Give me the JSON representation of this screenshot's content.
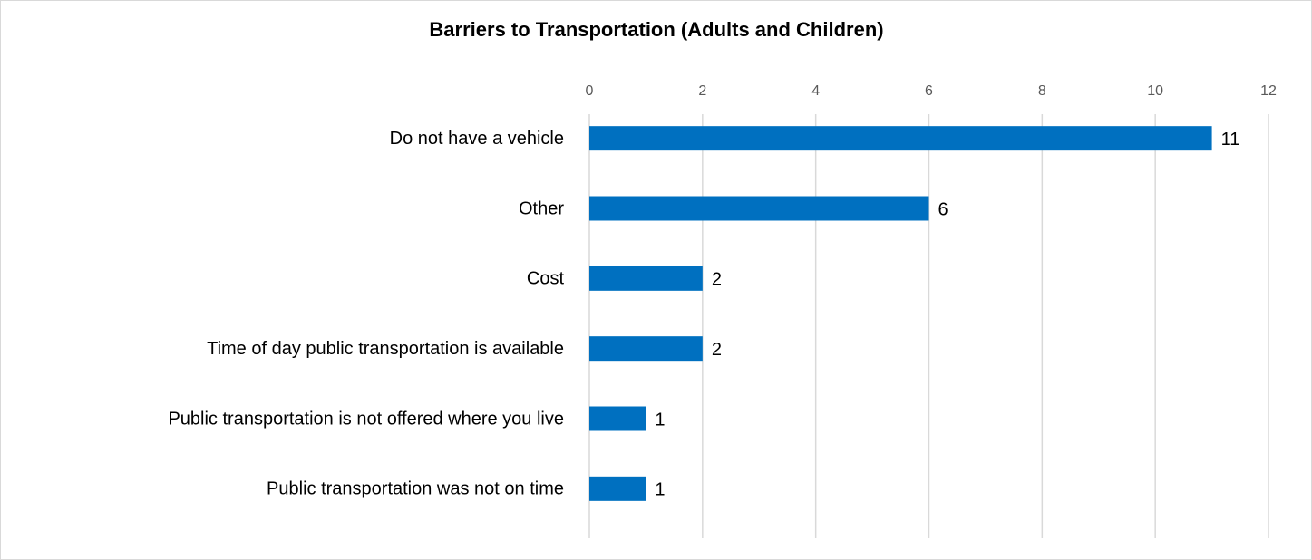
{
  "chart_data": {
    "type": "bar",
    "orientation": "horizontal",
    "title": "Barriers to Transportation (Adults and Children)",
    "categories": [
      "Do not have a vehicle",
      "Other",
      "Cost",
      "Time of day public transportation is available",
      "Public transportation is not offered where you live",
      "Public transportation was not on time"
    ],
    "values": [
      11,
      6,
      2,
      2,
      1,
      1
    ],
    "color": "#0070c0",
    "xlim": [
      0,
      12
    ],
    "xticks": [
      0,
      2,
      4,
      6,
      8,
      10,
      12
    ],
    "grid": true,
    "data_labels": true
  }
}
